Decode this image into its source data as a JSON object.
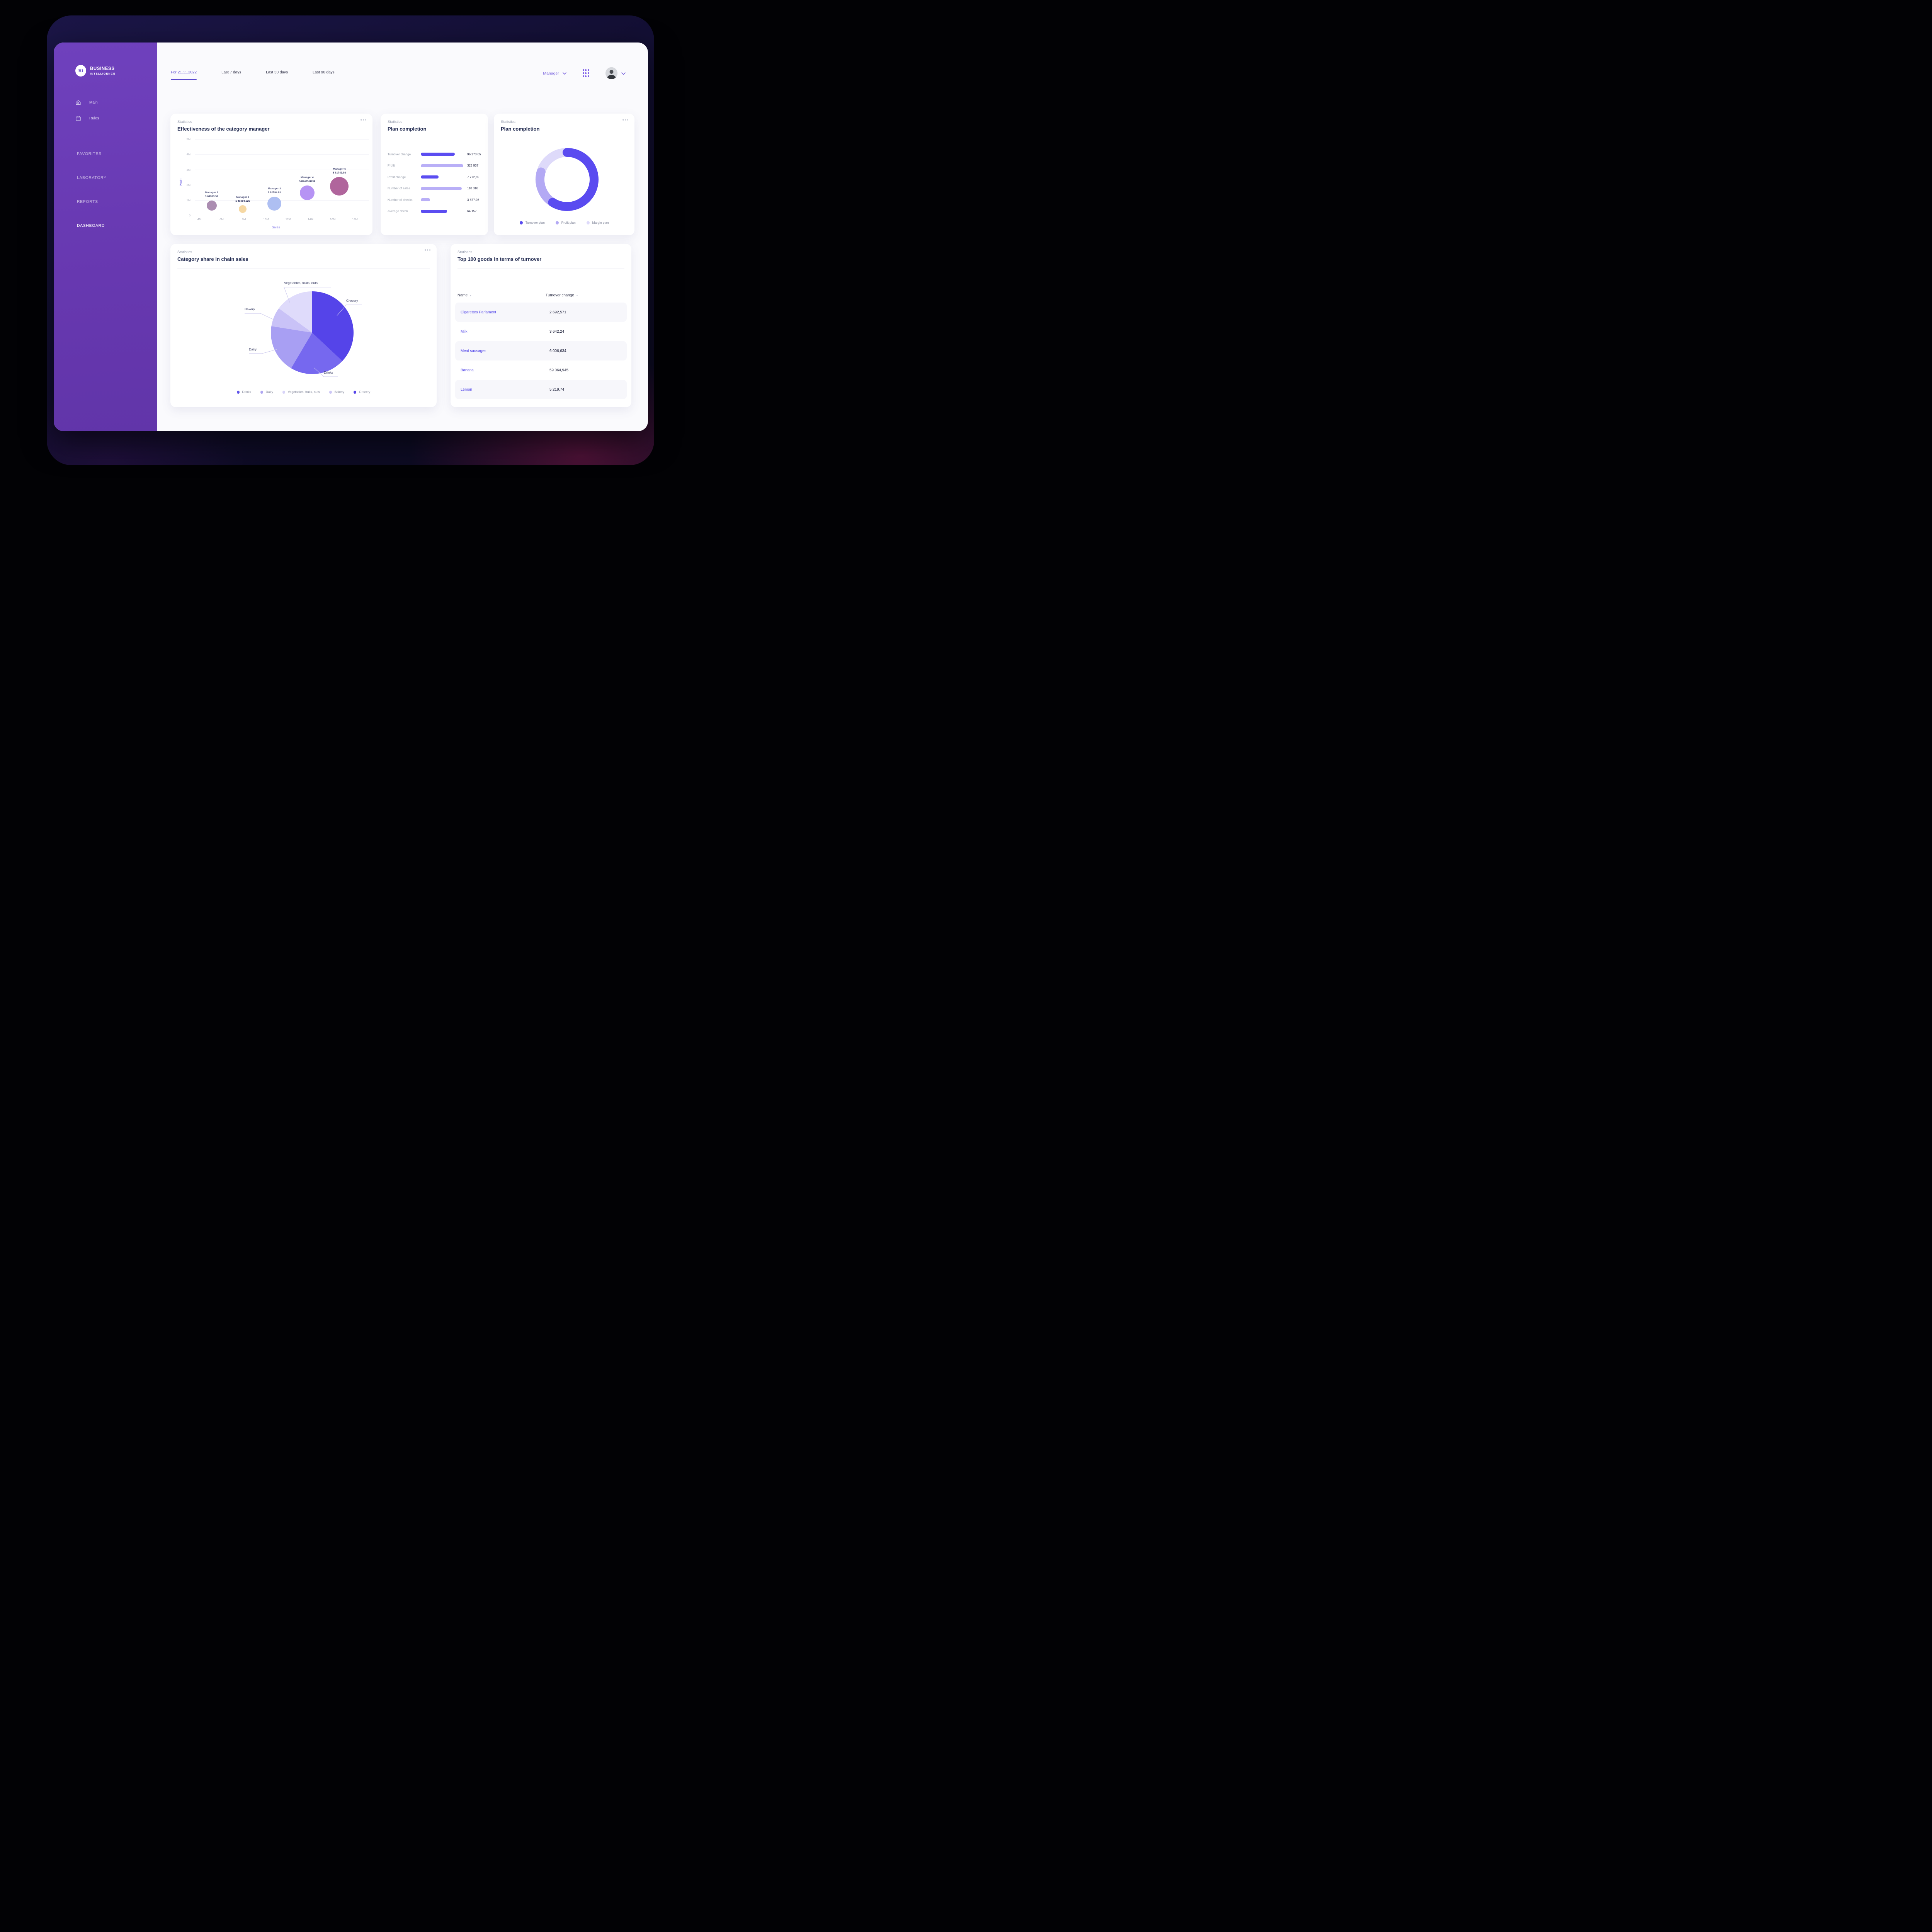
{
  "sidebar": {
    "logo_initials": "BI",
    "brand_line1": "BUSINESS",
    "brand_line2": "INTELLIGENCE",
    "menu": [
      {
        "label": "Main",
        "icon": "home-icon"
      },
      {
        "label": "Rules",
        "icon": "calendar-icon"
      }
    ],
    "sections": [
      {
        "label": "FAVORITES",
        "active": false
      },
      {
        "label": "LABORATORY",
        "active": false
      },
      {
        "label": "REPORTS",
        "active": false
      },
      {
        "label": "DASHBOARD",
        "active": true
      }
    ]
  },
  "topbar": {
    "tabs": [
      {
        "label": "For 21.11.2022",
        "active": true
      },
      {
        "label": "Last 7 days",
        "active": false
      },
      {
        "label": "Last 30 days",
        "active": false
      },
      {
        "label": "Last 90 days",
        "active": false
      }
    ],
    "manager_label": "Manager"
  },
  "cards": {
    "effectiveness": {
      "eyebrow": "Statistics",
      "title": "Effectiveness of the category manager"
    },
    "plan_bars": {
      "eyebrow": "Statistics",
      "title": "Plan completion"
    },
    "plan_donut": {
      "eyebrow": "Statistics",
      "title": "Plan completion"
    },
    "category_pie": {
      "eyebrow": "Statistics",
      "title": "Category share in chain sales"
    },
    "top_goods": {
      "eyebrow": "Statistics",
      "title": "Top 100 goods in terms of turnover"
    }
  },
  "chart_data": [
    {
      "id": "effectiveness",
      "type": "scatter",
      "title": "Effectiveness of the category manager",
      "xlabel": "Sales",
      "ylabel": "Profit",
      "x_ticks": [
        "4M",
        "6M",
        "8M",
        "10M",
        "12M",
        "14M",
        "16M",
        "18M"
      ],
      "y_ticks": [
        "0",
        "1M",
        "2M",
        "3M",
        "4M",
        "5M"
      ],
      "xlim_m": [
        3,
        19
      ],
      "ylim_m": [
        0,
        5
      ],
      "grid": true,
      "points": [
        {
          "name": "Manager 1",
          "value_label": "3 69983.52",
          "sales_m": 5.1,
          "profit_m": 0.63,
          "radius": 13,
          "color": "#ab8db1"
        },
        {
          "name": "Manager 2",
          "value_label": "1 41094,525",
          "sales_m": 7.9,
          "profit_m": 0.41,
          "radius": 10,
          "color": "#f6d8a3"
        },
        {
          "name": "Manager 3",
          "value_label": "6 92794.91",
          "sales_m": 10.75,
          "profit_m": 0.77,
          "radius": 18,
          "color": "#aebff2"
        },
        {
          "name": "Manager 4",
          "value_label": "5 89405.8239",
          "sales_m": 13.7,
          "profit_m": 1.47,
          "radius": 19,
          "color": "#b693f4"
        },
        {
          "name": "Manager 5",
          "value_label": "6 81743.93",
          "sales_m": 16.6,
          "profit_m": 1.9,
          "radius": 24,
          "color": "#b0659c"
        }
      ]
    },
    {
      "id": "plan_bars",
      "type": "bar",
      "title": "Plan completion",
      "orientation": "horizontal",
      "categories": [
        "Turnover change",
        "Profit",
        "Profit change",
        "Number of sales",
        "Number of checks",
        "Average check"
      ],
      "values": [
        96273.65,
        323937,
        7772.89,
        110310,
        3877.98,
        64157
      ],
      "value_labels": [
        "96 273,65",
        "323 937",
        "7 772,89",
        "110 310",
        "3 877,98",
        "64 157"
      ],
      "bar_pcts": [
        79,
        98,
        41,
        95,
        21,
        61
      ],
      "tones": [
        "dark",
        "light",
        "dark",
        "light",
        "light",
        "dark"
      ]
    },
    {
      "id": "plan_donut",
      "type": "pie",
      "variant": "donut",
      "title": "Plan completion",
      "legend_position": "bottom",
      "segments": [
        {
          "label": "Turnover plan",
          "pct": 59,
          "color": "#5a4bf0"
        },
        {
          "label": "Profit plan",
          "pct": 20.5,
          "color": "#b3a9f4"
        },
        {
          "label": "Margin plan",
          "pct": 20.5,
          "color": "#dedafa"
        }
      ]
    },
    {
      "id": "category_pie",
      "type": "pie",
      "title": "Category share in chain sales",
      "legend_position": "bottom",
      "slices": [
        {
          "label": "Grocery",
          "pct": 37,
          "color": "#5544e9"
        },
        {
          "label": "Drinks",
          "pct": 21.5,
          "color": "#7668ef"
        },
        {
          "label": "Dairy",
          "pct": 19,
          "color": "#a89ff3"
        },
        {
          "label": "Bakery",
          "pct": 7.5,
          "color": "#c9c2f7"
        },
        {
          "label": "Vegetables, fruits, nuts",
          "pct": 15,
          "color": "#dfdbfb"
        }
      ],
      "legend": [
        {
          "label": "Drinks",
          "color": "#6156ea"
        },
        {
          "label": "Dairy",
          "color": "#b0a7f1"
        },
        {
          "label": "Vegetables, fruits, nuts",
          "color": "#d8d4f8"
        },
        {
          "label": "Bakery",
          "color": "#cdc7f6"
        },
        {
          "label": "Grocery",
          "color": "#5544e9"
        }
      ]
    },
    {
      "id": "top_goods",
      "type": "table",
      "columns": [
        "Name",
        "Turnover change"
      ],
      "rows": [
        {
          "name": "Cigarettes Parlament",
          "turnover_change": "2 692,571"
        },
        {
          "name": "Milk",
          "turnover_change": "3 642,24"
        },
        {
          "name": "Meat sausages",
          "turnover_change": "6 006,634"
        },
        {
          "name": "Banana",
          "turnover_change": "59 064,945"
        },
        {
          "name": "Lemon",
          "turnover_change": "5 219,74"
        }
      ]
    }
  ]
}
